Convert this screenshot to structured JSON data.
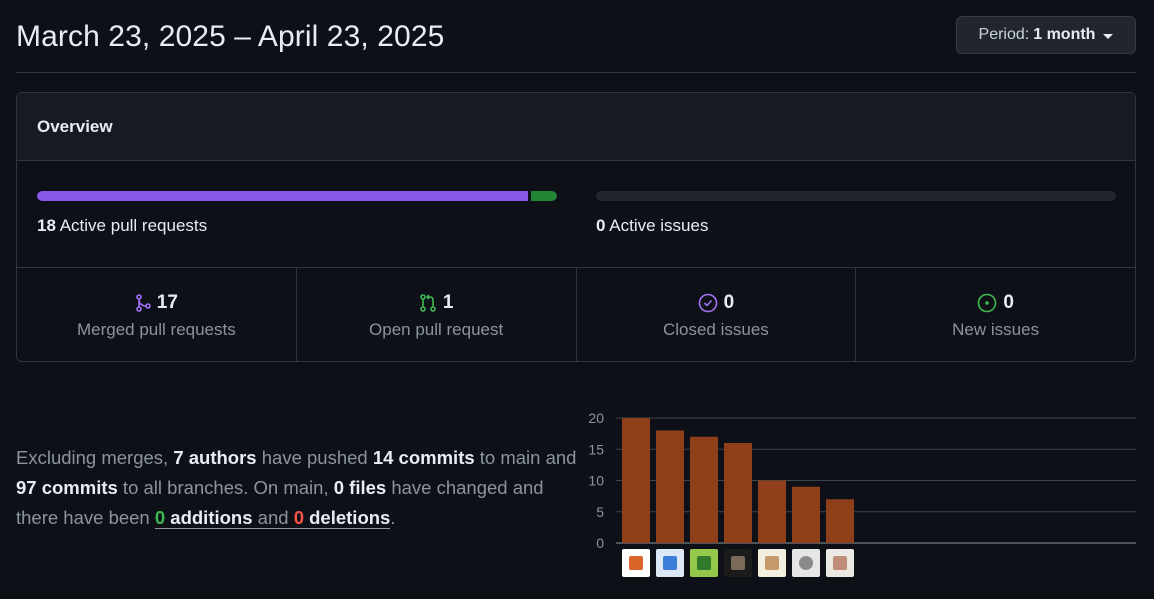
{
  "header": {
    "date_range": "March 23, 2025 – April 23, 2025",
    "period_label": "Period:",
    "period_value": "1 month"
  },
  "overview": {
    "title": "Overview",
    "pull_requests": {
      "count": "18",
      "label": "Active pull requests",
      "merged_fraction": 0.944
    },
    "issues": {
      "count": "0",
      "label": "Active issues"
    },
    "stats": [
      {
        "count": "17",
        "label": "Merged pull requests",
        "icon": "merge-icon",
        "color": "#a371f7"
      },
      {
        "count": "1",
        "label": "Open pull request",
        "icon": "pull-request-icon",
        "color": "#3fb950"
      },
      {
        "count": "0",
        "label": "Closed issues",
        "icon": "issue-closed-icon",
        "color": "#a371f7"
      },
      {
        "count": "0",
        "label": "New issues",
        "icon": "issue-opened-icon",
        "color": "#3fb950"
      }
    ]
  },
  "summary": {
    "p1": "Excluding merges, ",
    "authors": "7 authors",
    "p2": " have pushed ",
    "commits_main": "14 commits",
    "p3": " to main and ",
    "commits_all": "97 commits",
    "p4": " to all branches. On main, ",
    "files": "0 files",
    "p5": " have changed and there have been ",
    "additions_num": "0",
    "additions_word": "additions",
    "and": "and",
    "deletions_num": "0",
    "deletions_word": "deletions",
    "end": "."
  },
  "chart_data": {
    "type": "bar",
    "categories": [
      "author-1",
      "author-2",
      "author-3",
      "author-4",
      "author-5",
      "author-6",
      "author-7"
    ],
    "values": [
      20,
      18,
      17,
      16,
      10,
      9,
      7
    ],
    "y_ticks": [
      "0",
      "5",
      "10",
      "15",
      "20"
    ],
    "ylim": [
      0,
      20
    ],
    "bar_color": "#8f401b",
    "grid": true,
    "x_labels": "avatars"
  }
}
